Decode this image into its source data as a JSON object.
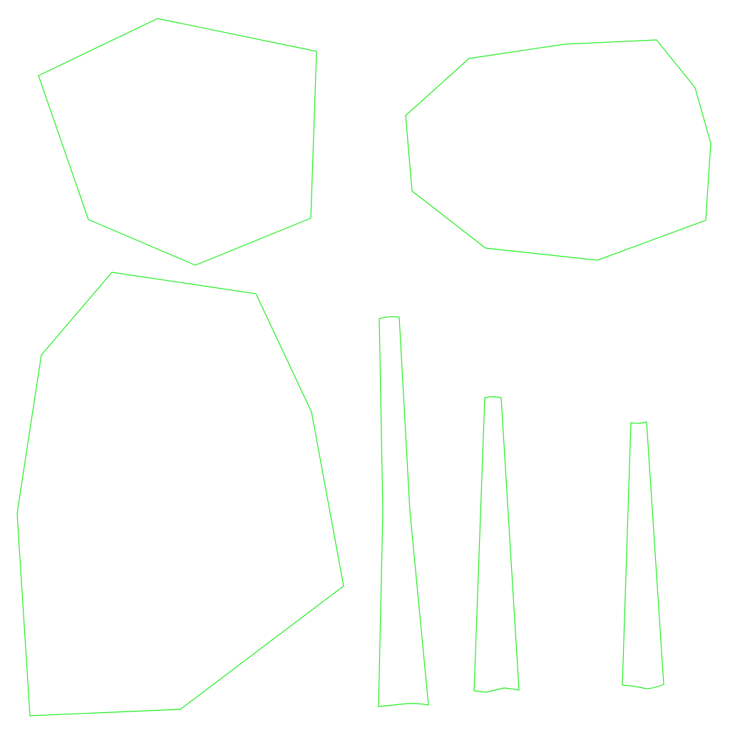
{
  "canvas": {
    "background": "#ffffff",
    "outline_color": "#22ee22"
  },
  "shapes": [
    {
      "name": "polygon-top-left"
    },
    {
      "name": "polygon-top-right"
    },
    {
      "name": "polygon-bottom-left"
    },
    {
      "name": "tapered-strip-long"
    },
    {
      "name": "tapered-strip-medium"
    },
    {
      "name": "tapered-strip-short"
    }
  ]
}
